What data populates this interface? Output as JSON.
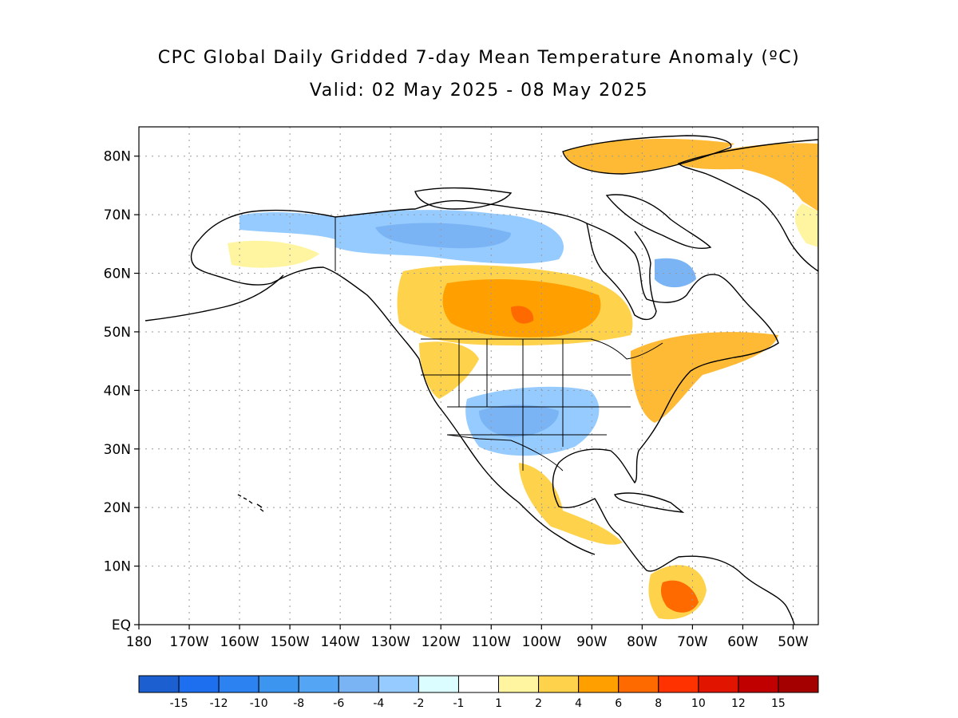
{
  "title": {
    "line1": "CPC Global Daily Gridded 7-day Mean Temperature Anomaly (ºC)",
    "line2": "Valid: 02 May 2025 - 08 May 2025"
  },
  "map": {
    "projection": "cylindrical equidistant",
    "lon_range": [
      -180,
      -45
    ],
    "lat_range": [
      0,
      85
    ],
    "grid": "dotted",
    "boundaries": [
      "coastlines",
      "country borders",
      "US states",
      "Canadian provinces"
    ],
    "lat_labels": [
      {
        "lat": 80,
        "text": "80N"
      },
      {
        "lat": 70,
        "text": "70N"
      },
      {
        "lat": 60,
        "text": "60N"
      },
      {
        "lat": 50,
        "text": "50N"
      },
      {
        "lat": 40,
        "text": "40N"
      },
      {
        "lat": 30,
        "text": "30N"
      },
      {
        "lat": 20,
        "text": "20N"
      },
      {
        "lat": 10,
        "text": "10N"
      },
      {
        "lat": 0,
        "text": "EQ"
      }
    ],
    "lon_labels": [
      {
        "lon": -180,
        "text": "180"
      },
      {
        "lon": -170,
        "text": "170W"
      },
      {
        "lon": -160,
        "text": "160W"
      },
      {
        "lon": -150,
        "text": "150W"
      },
      {
        "lon": -140,
        "text": "140W"
      },
      {
        "lon": -130,
        "text": "130W"
      },
      {
        "lon": -120,
        "text": "120W"
      },
      {
        "lon": -110,
        "text": "110W"
      },
      {
        "lon": -100,
        "text": "100W"
      },
      {
        "lon": -90,
        "text": "90W"
      },
      {
        "lon": -80,
        "text": "80W"
      },
      {
        "lon": -70,
        "text": "70W"
      },
      {
        "lon": -60,
        "text": "60W"
      },
      {
        "lon": -50,
        "text": "50W"
      }
    ],
    "land_color": "#ffffff",
    "ocean_color": "#ffffff"
  },
  "anomaly_regions": [
    {
      "region": "Northern Canada / Arctic Archipelago",
      "anomaly_range": "-4 to -6",
      "color": "#7ab4f5"
    },
    {
      "region": "Central Canadian Prairies",
      "anomaly_range": "4 to 6",
      "color": "#ffa000"
    },
    {
      "region": "US Southwest / Southern Plains",
      "anomaly_range": "-2 to -4",
      "color": "#96cbff"
    },
    {
      "region": "US Northeast",
      "anomaly_range": "2 to 6",
      "color": "#ffba35"
    },
    {
      "region": "Greenland",
      "anomaly_range": "2 to 6",
      "color": "#ffba35"
    },
    {
      "region": "Northwest South America",
      "anomaly_range": "6 to 8",
      "color": "#ff6a00"
    }
  ],
  "colorbar": {
    "bins": [
      {
        "color": "#1c5fd0"
      },
      {
        "color": "#1e6ff0"
      },
      {
        "color": "#2b82f0"
      },
      {
        "color": "#3c96f0"
      },
      {
        "color": "#55a5f5"
      },
      {
        "color": "#7ab4f5"
      },
      {
        "color": "#96cbff"
      },
      {
        "color": "#dcfdff"
      },
      {
        "color": "#ffffff"
      },
      {
        "color": "#fff5a0"
      },
      {
        "color": "#ffd24c"
      },
      {
        "color": "#ffa000"
      },
      {
        "color": "#ff6a00"
      },
      {
        "color": "#ff3200"
      },
      {
        "color": "#e11400"
      },
      {
        "color": "#c00000"
      },
      {
        "color": "#a50000"
      }
    ],
    "labels": [
      "-15",
      "-12",
      "-10",
      "-8",
      "-6",
      "-4",
      "-2",
      "-1",
      "1",
      "2",
      "4",
      "6",
      "8",
      "10",
      "12",
      "15"
    ]
  }
}
